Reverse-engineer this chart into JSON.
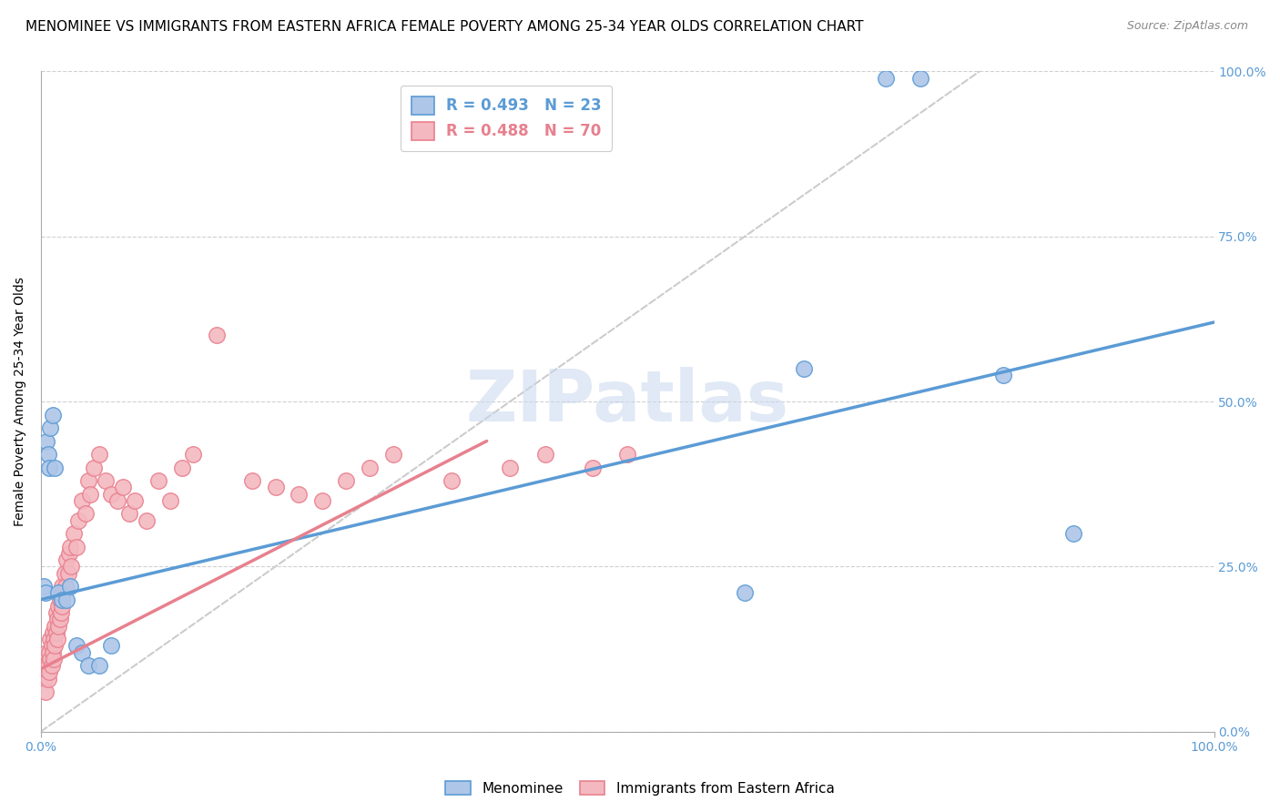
{
  "title": "MENOMINEE VS IMMIGRANTS FROM EASTERN AFRICA FEMALE POVERTY AMONG 25-34 YEAR OLDS CORRELATION CHART",
  "source": "Source: ZipAtlas.com",
  "ylabel": "Female Poverty Among 25-34 Year Olds",
  "xlim": [
    0.0,
    1.0
  ],
  "ylim": [
    0.0,
    1.0
  ],
  "ytick_positions": [
    0.0,
    0.25,
    0.5,
    0.75,
    1.0
  ],
  "ytick_labels": [
    "0.0%",
    "25.0%",
    "50.0%",
    "75.0%",
    "100.0%"
  ],
  "xtick_positions": [
    0.0,
    1.0
  ],
  "xtick_labels": [
    "0.0%",
    "100.0%"
  ],
  "watermark": "ZIPatlas",
  "blue_color": "#5b9bd5",
  "pink_color": "#e8808e",
  "blue_scatter_color": "#aec6e8",
  "pink_scatter_color": "#f4b8c0",
  "legend_entries": [
    {
      "label": "R = 0.493   N = 23"
    },
    {
      "label": "R = 0.488   N = 70"
    }
  ],
  "menominee_x": [
    0.002,
    0.004,
    0.005,
    0.006,
    0.007,
    0.008,
    0.01,
    0.012,
    0.015,
    0.018,
    0.022,
    0.025,
    0.03,
    0.035,
    0.04,
    0.05,
    0.06,
    0.6,
    0.65,
    0.72,
    0.75,
    0.82,
    0.88
  ],
  "menominee_y": [
    0.22,
    0.21,
    0.44,
    0.42,
    0.4,
    0.46,
    0.48,
    0.4,
    0.21,
    0.2,
    0.2,
    0.22,
    0.13,
    0.12,
    0.1,
    0.1,
    0.13,
    0.21,
    0.55,
    0.99,
    0.99,
    0.54,
    0.3
  ],
  "eastern_africa_x": [
    0.003,
    0.004,
    0.005,
    0.005,
    0.006,
    0.006,
    0.007,
    0.007,
    0.008,
    0.008,
    0.009,
    0.009,
    0.01,
    0.01,
    0.011,
    0.011,
    0.012,
    0.012,
    0.013,
    0.013,
    0.014,
    0.014,
    0.015,
    0.015,
    0.016,
    0.016,
    0.017,
    0.018,
    0.018,
    0.019,
    0.02,
    0.021,
    0.022,
    0.023,
    0.024,
    0.025,
    0.026,
    0.028,
    0.03,
    0.032,
    0.035,
    0.038,
    0.04,
    0.042,
    0.045,
    0.05,
    0.055,
    0.06,
    0.065,
    0.07,
    0.075,
    0.08,
    0.09,
    0.1,
    0.11,
    0.12,
    0.13,
    0.15,
    0.18,
    0.2,
    0.22,
    0.24,
    0.26,
    0.28,
    0.3,
    0.35,
    0.4,
    0.43,
    0.47,
    0.5
  ],
  "eastern_africa_y": [
    0.08,
    0.06,
    0.12,
    0.1,
    0.1,
    0.08,
    0.12,
    0.09,
    0.14,
    0.11,
    0.13,
    0.1,
    0.15,
    0.12,
    0.14,
    0.11,
    0.16,
    0.13,
    0.18,
    0.15,
    0.17,
    0.14,
    0.19,
    0.16,
    0.2,
    0.17,
    0.18,
    0.22,
    0.19,
    0.21,
    0.24,
    0.22,
    0.26,
    0.24,
    0.27,
    0.28,
    0.25,
    0.3,
    0.28,
    0.32,
    0.35,
    0.33,
    0.38,
    0.36,
    0.4,
    0.42,
    0.38,
    0.36,
    0.35,
    0.37,
    0.33,
    0.35,
    0.32,
    0.38,
    0.35,
    0.4,
    0.42,
    0.6,
    0.38,
    0.37,
    0.36,
    0.35,
    0.38,
    0.4,
    0.42,
    0.38,
    0.4,
    0.42,
    0.4,
    0.42
  ],
  "blue_line_x": [
    0.0,
    1.0
  ],
  "blue_line_y": [
    0.2,
    0.62
  ],
  "pink_line_x": [
    0.0,
    0.38
  ],
  "pink_line_y": [
    0.095,
    0.44
  ],
  "dashed_line_x": [
    0.0,
    0.8
  ],
  "dashed_line_y": [
    0.0,
    1.0
  ],
  "title_fontsize": 11,
  "axis_label_fontsize": 10,
  "tick_fontsize": 10,
  "legend_fontsize": 12
}
